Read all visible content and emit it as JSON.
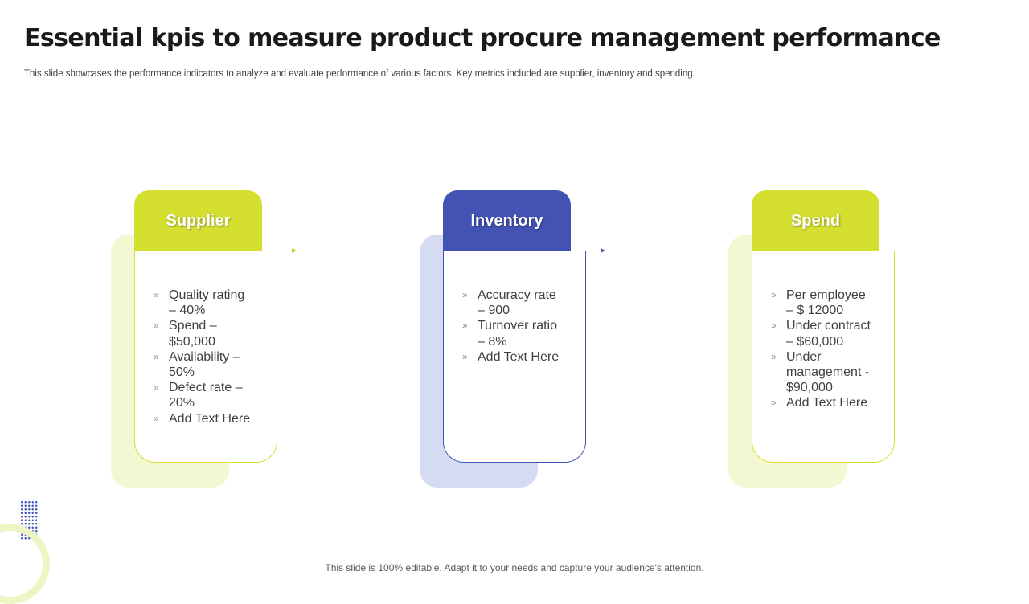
{
  "slide": {
    "title": "Essential kpis to measure product procure management performance",
    "subtitle": "This slide showcases the performance indicators to analyze and evaluate performance of various factors. Key metrics included are supplier, inventory and spending.",
    "footer": "This slide is 100% editable. Adapt it to your needs and capture your audience's attention."
  },
  "colors": {
    "green": "#d4df30",
    "green_light": "#f3f8d2",
    "blue": "#4253b3",
    "blue_light": "#d5dbf0"
  },
  "cards": [
    {
      "heading": "Supplier",
      "items": [
        "Quality rating – 40%",
        "Spend – $50,000",
        "Availability – 50%",
        "Defect rate – 20%",
        "Add Text Here"
      ]
    },
    {
      "heading": "Inventory",
      "items": [
        "Accuracy rate – 900",
        "Turnover ratio – 8%",
        "Add Text Here"
      ]
    },
    {
      "heading": "Spend",
      "items": [
        "Per employee – $ 12000",
        "Under contract – $60,000",
        "Under management - $90,000",
        "Add Text Here"
      ]
    }
  ]
}
